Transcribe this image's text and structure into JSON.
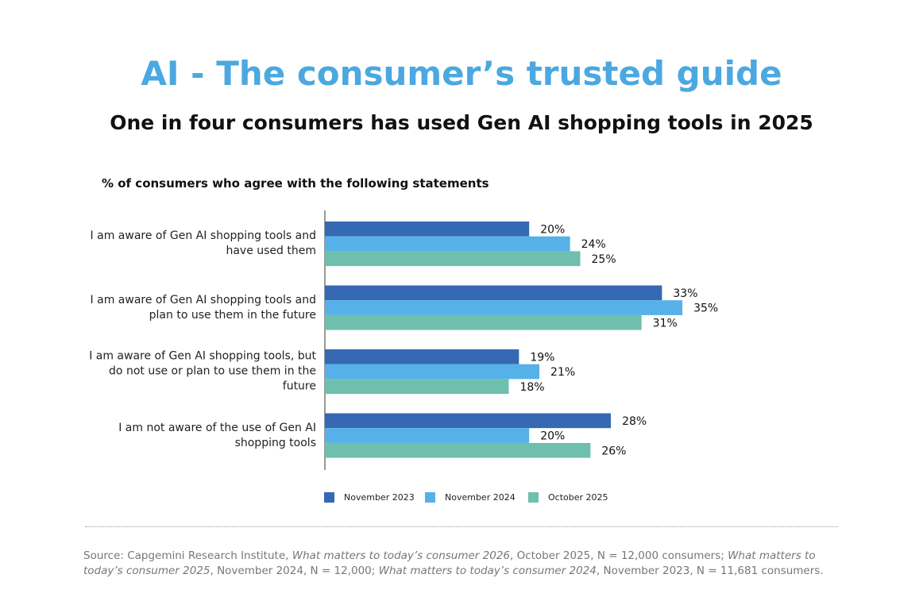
{
  "chart_data": {
    "type": "hbar",
    "title": "AI - The consumer’s trusted guide",
    "subtitle": "One in four consumers has used Gen AI shopping tools in 2025",
    "axis_label": "% of consumers who agree with the following statements",
    "categories": [
      "I am aware of Gen AI shopping tools and have used them",
      "I am aware of Gen AI shopping tools and plan to use them in the future",
      "I am aware of Gen AI shopping tools, but do not use or plan to use them in the future",
      "I am not aware of the use of Gen AI shopping tools"
    ],
    "series": [
      {
        "name": "November 2023",
        "color": "#3569b3",
        "values": [
          20,
          33,
          19,
          28
        ],
        "value_labels": [
          "20%",
          "33%",
          "19%",
          "28%"
        ]
      },
      {
        "name": "November 2024",
        "color": "#56b1e8",
        "values": [
          24,
          35,
          21,
          20
        ],
        "value_labels": [
          "24%",
          "35%",
          "21%",
          "20%"
        ]
      },
      {
        "name": "October 2025",
        "color": "#6ebfad",
        "values": [
          25,
          31,
          18,
          26
        ],
        "value_labels": [
          "25%",
          "31%",
          "18%",
          "26%"
        ]
      }
    ],
    "legend": "bottom",
    "source": [
      {
        "text": "Source: Capgemini Research Institute, ",
        "italic": false
      },
      {
        "text": "What matters to today’s consumer 2026",
        "italic": true
      },
      {
        "text": ", October 2025, N = 12,000 consumers; ",
        "italic": false
      },
      {
        "text": "What matters to today’s consumer 2025",
        "italic": true
      },
      {
        "text": ", November 2024, N = 12,000; ",
        "italic": false
      },
      {
        "text": "What matters to today’s consumer 2024",
        "italic": true
      },
      {
        "text": ", November 2023, N = 11,681 consumers.",
        "italic": false
      }
    ]
  }
}
